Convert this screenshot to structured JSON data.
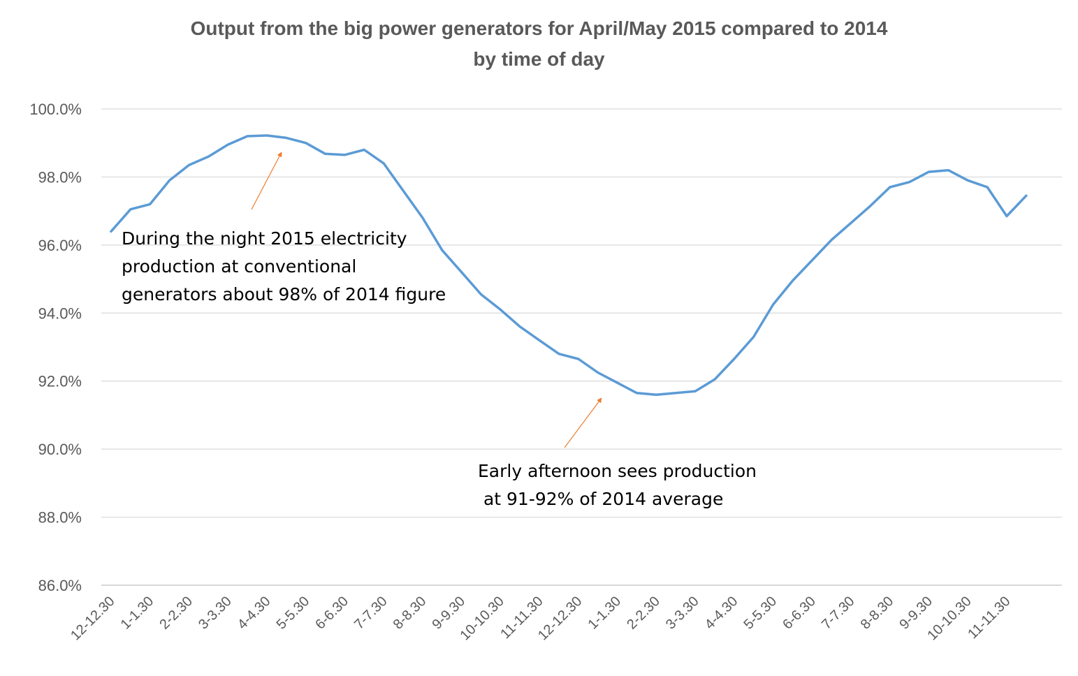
{
  "chart_data": {
    "type": "line",
    "title": "Output from the big power generators for April/May 2015 compared to 2014",
    "subtitle": "by time of day",
    "y_ticks": [
      "100.0%",
      "98.0%",
      "96.0%",
      "94.0%",
      "92.0%",
      "90.0%",
      "88.0%",
      "86.0%"
    ],
    "ylim": [
      86,
      100
    ],
    "grid": true,
    "x_labels": [
      "12-12.30",
      "1-1.30",
      "2-2.30",
      "3-3.30",
      "4-4.30",
      "5-5.30",
      "6-6.30",
      "7-7.30",
      "8-8.30",
      "9-9.30",
      "10-10.30",
      "11-11.30",
      "12-12.30",
      "1-1.30",
      "2-2.30",
      "3-3.30",
      "4-4.30",
      "5-5.30",
      "6-6.30",
      "7-7.30",
      "8-8.30",
      "9-9.30",
      "10-10.30",
      "11-11.30"
    ],
    "series": [
      {
        "color": "#5B9BD5",
        "values": [
          96.4,
          97.05,
          97.2,
          97.9,
          98.35,
          98.6,
          98.95,
          99.2,
          99.22,
          99.15,
          99.0,
          98.68,
          98.65,
          98.8,
          98.4,
          97.6,
          96.8,
          95.85,
          95.2,
          94.55,
          94.1,
          93.6,
          93.2,
          92.8,
          92.65,
          92.25,
          91.95,
          91.65,
          91.6,
          91.65,
          91.7,
          92.05,
          92.65,
          93.3,
          94.25,
          94.95,
          95.55,
          96.15,
          96.65,
          97.15,
          97.7,
          97.85,
          98.15,
          98.2,
          97.9,
          97.7,
          96.85,
          97.45
        ]
      }
    ],
    "annotations": [
      {
        "text": [
          "During the night 2015 electricity",
          "production at conventional",
          "generators about 98% of 2014 figure"
        ],
        "arrow_color": "#ED7D31"
      },
      {
        "text": [
          "Early afternoon sees production",
          " at 91-92% of 2014 average"
        ],
        "arrow_color": "#ED7D31"
      }
    ]
  }
}
